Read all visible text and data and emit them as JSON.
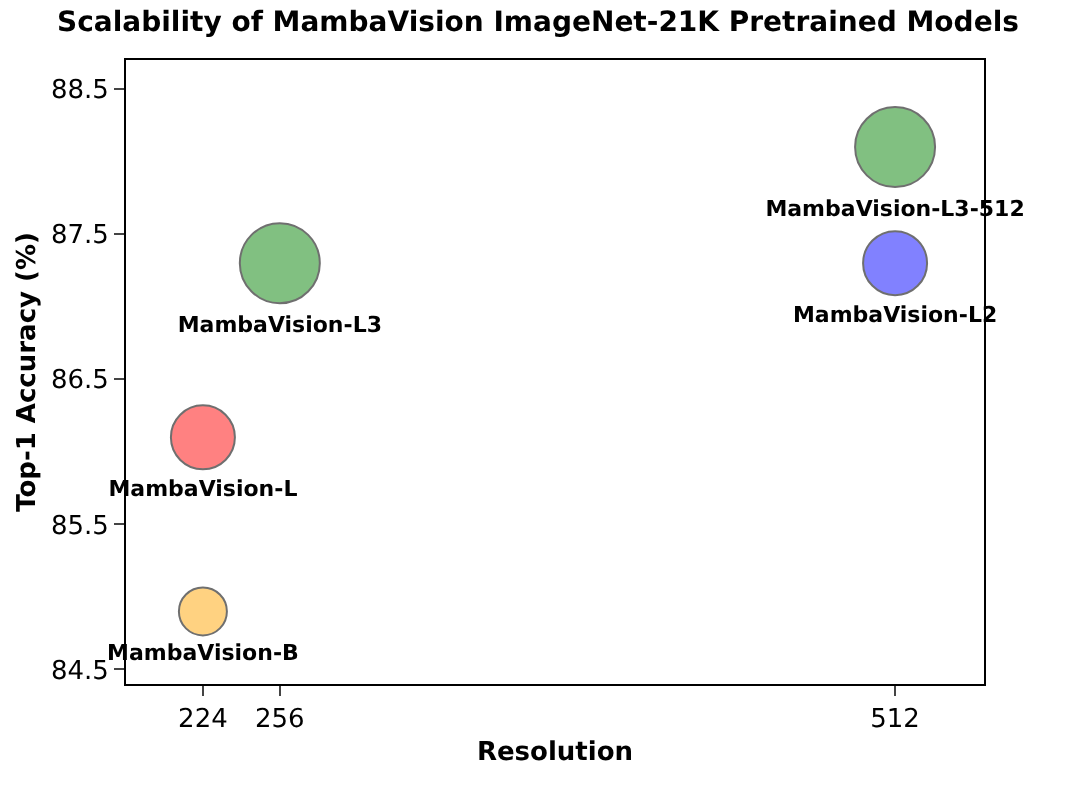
{
  "chart_data": {
    "type": "bubble",
    "title": "Scalability of MambaVision ImageNet-21K Pretrained Models",
    "xlabel": "Resolution",
    "ylabel": "Top-1 Accuracy (%)",
    "xlim": [
      192,
      549
    ],
    "xticks": [
      224,
      256,
      512
    ],
    "ylim": [
      84.4,
      88.7
    ],
    "yticks": [
      84.5,
      85.5,
      86.5,
      87.5,
      88.5
    ],
    "legend": false,
    "series": [
      {
        "name": "MambaVision-B",
        "color": "#ffc04d",
        "x": [
          224
        ],
        "values": [
          84.9
        ],
        "sizes": [
          0.36
        ]
      },
      {
        "name": "MambaVision-L",
        "color": "#ff4d4d",
        "x": [
          224
        ],
        "values": [
          86.1
        ],
        "sizes": [
          0.64
        ]
      },
      {
        "name": "MambaVision-L3",
        "color": "#4da64d",
        "x": [
          256
        ],
        "values": [
          87.3
        ],
        "sizes": [
          1
        ]
      },
      {
        "name": "MambaVision-L2",
        "color": "#4d4dff",
        "x": [
          512
        ],
        "values": [
          87.3
        ],
        "sizes": [
          0.64
        ]
      },
      {
        "name": "MambaVision-L3-512",
        "color": "#4da64d",
        "x": [
          512
        ],
        "values": [
          88.1
        ],
        "sizes": [
          1
        ]
      }
    ]
  }
}
